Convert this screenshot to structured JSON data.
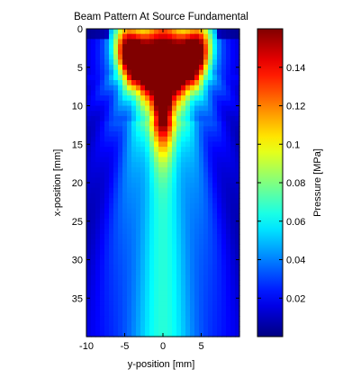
{
  "chart_data": {
    "type": "heatmap",
    "title": "Beam Pattern At Source Fundamental",
    "xlabel": "y-position [mm]",
    "ylabel": "x-position [mm]",
    "xlim": [
      -10,
      10
    ],
    "ylim": [
      0,
      40
    ],
    "y_reversed": true,
    "colormap": "jet",
    "x_ticks": [
      -10,
      -5,
      0,
      5
    ],
    "x_tick_labels": [
      "-10",
      "-5",
      "0",
      "5"
    ],
    "y_ticks": [
      0,
      5,
      10,
      15,
      20,
      25,
      30,
      35
    ],
    "y_tick_labels": [
      "0",
      "5",
      "10",
      "15",
      "20",
      "25",
      "30",
      "35"
    ],
    "colorbar": {
      "label": "Pressure [MPa]",
      "range": [
        0,
        0.16
      ],
      "ticks": [
        0.02,
        0.04,
        0.06,
        0.08,
        0.1,
        0.12,
        0.14
      ],
      "tick_labels": [
        "0.02",
        "0.04",
        "0.06",
        "0.08",
        "0.1",
        "0.12",
        "0.14"
      ]
    },
    "features": {
      "peak_pressure": 0.16,
      "peak_region_x": [
        2,
        13
      ],
      "near_field_lobe_centers_y": [
        -4,
        0,
        4
      ],
      "far_field_pressure": 0.05
    }
  }
}
